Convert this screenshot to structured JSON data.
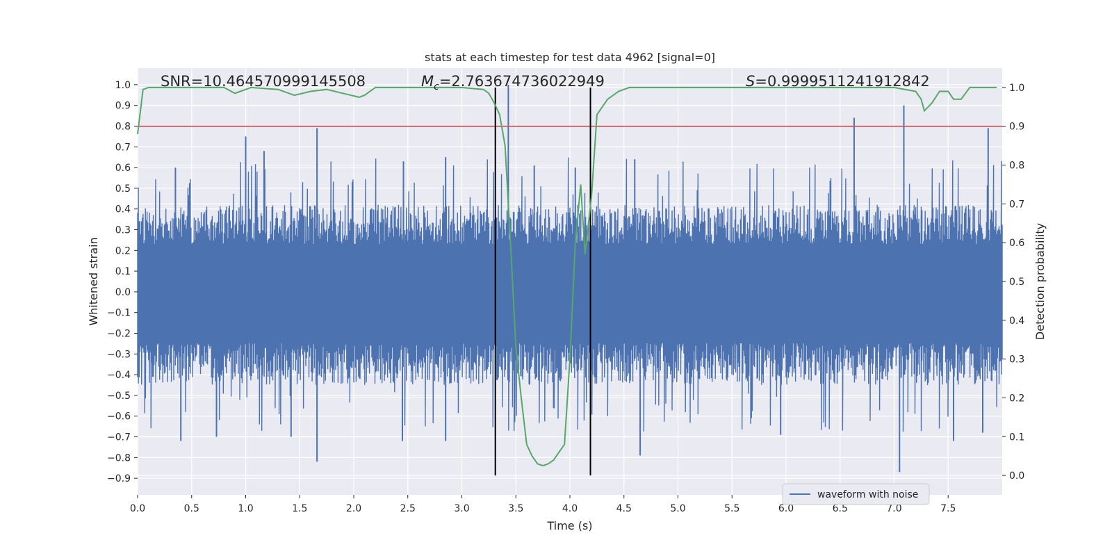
{
  "chart_data": {
    "type": "line",
    "title": "stats at each timestep for test data 4962 [signal=0]",
    "xlabel": "Time (s)",
    "ylabel_left": "Whitened strain",
    "ylabel_right": "Detection probability",
    "xlim": [
      0,
      8
    ],
    "ylim_left": [
      -0.98,
      1.08
    ],
    "ylim_right": [
      -0.05,
      1.05
    ],
    "x_ticks": [
      "0.0",
      "0.5",
      "1.0",
      "1.5",
      "2.0",
      "2.5",
      "3.0",
      "3.5",
      "4.0",
      "4.5",
      "5.0",
      "5.5",
      "6.0",
      "6.5",
      "7.0",
      "7.5"
    ],
    "y_left_ticks": [
      "-0.9",
      "-0.8",
      "-0.7",
      "-0.6",
      "-0.5",
      "-0.4",
      "-0.3",
      "-0.2",
      "-0.1",
      "0.0",
      "0.1",
      "0.2",
      "0.3",
      "0.4",
      "0.5",
      "0.6",
      "0.7",
      "0.8",
      "0.9",
      "1.0"
    ],
    "y_right_ticks": [
      "0.0",
      "0.1",
      "0.2",
      "0.3",
      "0.4",
      "0.5",
      "0.6",
      "0.7",
      "0.8",
      "0.9",
      "1.0"
    ],
    "annotations": {
      "snr": "SNR=10.464570999145508",
      "mc_symbol": "M",
      "mc_sub": "c",
      "mc_value": "=2.763674736022949",
      "s_symbol": "S",
      "s_value": "=0.9999511241912842"
    },
    "threshold_probability": 0.9,
    "event_window": [
      3.31,
      4.19
    ],
    "series": [
      {
        "name": "waveform with noise",
        "axis": "left",
        "color": "#4c72b0",
        "style": "noise",
        "envelope_positive": 0.42,
        "envelope_negative": -0.45,
        "peak_spikes": [
          [
            0.35,
            0.6
          ],
          [
            1.0,
            0.75
          ],
          [
            1.17,
            0.68
          ],
          [
            1.66,
            0.79
          ],
          [
            2.46,
            0.63
          ],
          [
            2.85,
            0.65
          ],
          [
            3.43,
            1.0
          ],
          [
            3.67,
            0.61
          ],
          [
            4.05,
            0.6
          ],
          [
            4.6,
            0.64
          ],
          [
            6.63,
            0.84
          ],
          [
            7.09,
            0.9
          ],
          [
            7.87,
            0.79
          ]
        ],
        "trough_spikes": [
          [
            0.4,
            -0.72
          ],
          [
            0.73,
            -0.7
          ],
          [
            1.42,
            -0.7
          ],
          [
            1.66,
            -0.82
          ],
          [
            2.45,
            -0.72
          ],
          [
            2.85,
            -0.72
          ],
          [
            4.65,
            -0.79
          ],
          [
            5.95,
            -0.69
          ],
          [
            7.05,
            -0.87
          ],
          [
            7.55,
            -0.72
          ],
          [
            7.82,
            -0.68
          ]
        ]
      },
      {
        "name": "detection probability",
        "axis": "right",
        "color": "#55a868",
        "x": [
          0.0,
          0.05,
          0.1,
          0.2,
          0.3,
          0.5,
          0.8,
          0.9,
          0.95,
          1.05,
          1.3,
          1.45,
          1.6,
          1.75,
          1.9,
          2.05,
          2.1,
          2.2,
          2.3,
          3.0,
          3.2,
          3.25,
          3.3,
          3.35,
          3.4,
          3.45,
          3.5,
          3.55,
          3.6,
          3.65,
          3.7,
          3.75,
          3.8,
          3.85,
          3.9,
          3.95,
          4.0,
          4.05,
          4.1,
          4.14,
          4.2,
          4.25,
          4.3,
          4.35,
          4.45,
          4.55,
          4.7,
          5.0,
          5.5,
          6.0,
          6.5,
          7.0,
          7.2,
          7.25,
          7.28,
          7.35,
          7.42,
          7.5,
          7.55,
          7.62,
          7.7,
          7.8,
          7.95
        ],
        "y": [
          0.88,
          0.995,
          1.0,
          1.0,
          1.0,
          1.0,
          1.0,
          0.985,
          0.99,
          1.0,
          0.995,
          0.98,
          0.99,
          0.995,
          0.985,
          0.975,
          0.98,
          1.0,
          1.0,
          1.0,
          0.995,
          0.985,
          0.96,
          0.93,
          0.85,
          0.6,
          0.33,
          0.2,
          0.08,
          0.05,
          0.03,
          0.025,
          0.03,
          0.04,
          0.06,
          0.08,
          0.3,
          0.6,
          0.75,
          0.57,
          0.72,
          0.93,
          0.95,
          0.97,
          0.99,
          1.0,
          1.0,
          1.0,
          1.0,
          1.0,
          1.0,
          1.0,
          0.99,
          0.97,
          0.94,
          0.96,
          0.99,
          0.99,
          0.97,
          0.97,
          1.0,
          1.0,
          1.0
        ]
      }
    ],
    "legend": [
      {
        "label": "waveform with noise",
        "color": "#4c72b0"
      }
    ],
    "legend_position": "lower-right",
    "grid": true,
    "colors": {
      "background": "#eaeaf2",
      "grid": "#ffffff",
      "threshold": "#c44e52",
      "event_lines": "#000000"
    }
  }
}
